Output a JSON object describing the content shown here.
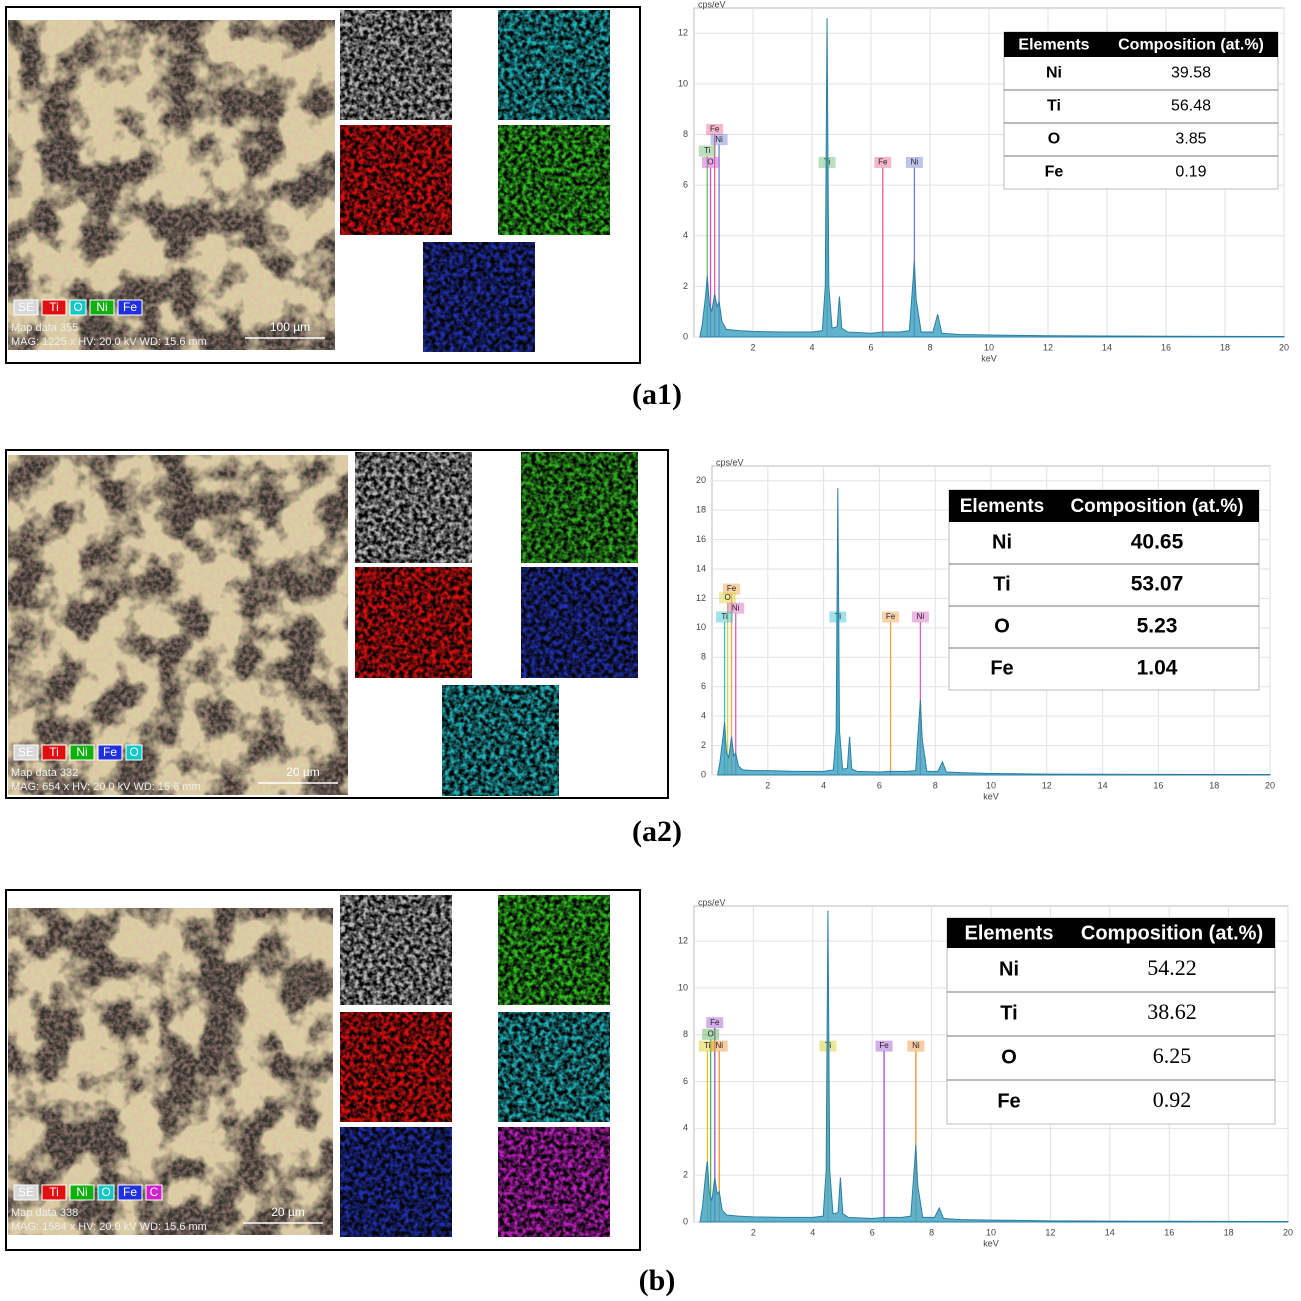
{
  "panels": [
    {
      "label": "(a1)",
      "image": {
        "elements": [
          {
            "name": "SE",
            "color": "#d8d8d8"
          },
          {
            "name": "Ti",
            "color": "#e01010"
          },
          {
            "name": "O",
            "color": "#10c8c8"
          },
          {
            "name": "Ni",
            "color": "#10b010"
          },
          {
            "name": "Fe",
            "color": "#2030e0"
          }
        ],
        "map_name": "Map data 355",
        "settings": "MAG: 1225 x  HV: 20.0 kV  WD: 15.6 mm",
        "scale": "100 µm"
      },
      "chart_data": {
        "type": "area",
        "y_label": "cps/eV",
        "x_label": "keV",
        "color": "#3a9fbf",
        "grid": true,
        "xlim": [
          0,
          20
        ],
        "ylim": [
          0,
          13
        ],
        "xticks": [
          2,
          4,
          6,
          8,
          10,
          12,
          14,
          16,
          18,
          20
        ],
        "yticks": [
          0,
          2,
          4,
          6,
          8,
          10,
          12
        ],
        "x": [
          0.2,
          0.28,
          0.39,
          0.45,
          0.52,
          0.6,
          0.7,
          0.78,
          0.85,
          0.95,
          1.1,
          1.5,
          2,
          3,
          4,
          4.35,
          4.45,
          4.51,
          4.57,
          4.68,
          4.85,
          4.93,
          5.01,
          5.2,
          6,
          6.4,
          7,
          7.3,
          7.41,
          7.47,
          7.53,
          7.7,
          8.1,
          8.26,
          8.4,
          9,
          10,
          12,
          14,
          16,
          20
        ],
        "values": [
          0,
          0.5,
          1.6,
          2.4,
          1.3,
          1.0,
          1.7,
          1.2,
          1.4,
          0.6,
          0.3,
          0.25,
          0.22,
          0.2,
          0.2,
          0.25,
          2.0,
          12.6,
          2.0,
          0.35,
          0.4,
          1.6,
          0.35,
          0.2,
          0.15,
          0.2,
          0.2,
          0.25,
          2.0,
          3.0,
          1.5,
          0.2,
          0.2,
          0.9,
          0.15,
          0.1,
          0.08,
          0.05,
          0.04,
          0.03,
          0.02
        ],
        "peaks": [
          {
            "label": "Fe",
            "x": 0.7,
            "height": 8,
            "color": "#ec5f8f"
          },
          {
            "label": "Ni",
            "x": 0.85,
            "height": 7.6,
            "color": "#6f7fd0"
          },
          {
            "label": "Ti",
            "x": 0.45,
            "height": 7.15,
            "color": "#66bb6a"
          },
          {
            "label": "O",
            "x": 0.56,
            "height": 6.7,
            "color": "#d04ad0"
          },
          {
            "label": "Ti",
            "x": 4.51,
            "height": 6.7,
            "color": "#66bb6a"
          },
          {
            "label": "Fe",
            "x": 6.4,
            "height": 6.7,
            "color": "#ec5f8f"
          },
          {
            "label": "Ni",
            "x": 7.47,
            "height": 6.7,
            "color": "#6f7fd0"
          }
        ]
      },
      "table": {
        "header": [
          "Elements",
          "Composition (at.%)"
        ],
        "rows": [
          [
            "Ni",
            "39.58"
          ],
          [
            "Ti",
            "56.48"
          ],
          [
            "O",
            "3.85"
          ],
          [
            "Fe",
            "0.19"
          ]
        ]
      }
    },
    {
      "label": "(a2)",
      "image": {
        "elements": [
          {
            "name": "SE",
            "color": "#d8d8d8"
          },
          {
            "name": "Ti",
            "color": "#e01010"
          },
          {
            "name": "Ni",
            "color": "#10b010"
          },
          {
            "name": "Fe",
            "color": "#2030e0"
          },
          {
            "name": "O",
            "color": "#10c8c8"
          }
        ],
        "map_name": "Map data 332",
        "settings": "MAG: 654 x  HV: 20.0 kV  WD: 15.6 mm",
        "scale": "20 µm"
      },
      "chart_data": {
        "type": "area",
        "y_label": "cps/eV",
        "x_label": "keV",
        "color": "#3a9fbf",
        "grid": true,
        "xlim": [
          0,
          20
        ],
        "ylim": [
          0,
          21
        ],
        "xticks": [
          2,
          4,
          6,
          8,
          10,
          12,
          14,
          16,
          18,
          20
        ],
        "yticks": [
          0,
          2,
          4,
          6,
          8,
          10,
          12,
          14,
          16,
          18,
          20
        ],
        "x": [
          0.2,
          0.28,
          0.39,
          0.45,
          0.52,
          0.6,
          0.7,
          0.78,
          0.85,
          0.95,
          1.1,
          1.5,
          2,
          3,
          4,
          4.35,
          4.45,
          4.51,
          4.57,
          4.68,
          4.85,
          4.93,
          5.01,
          5.2,
          6,
          6.4,
          7,
          7.3,
          7.41,
          7.47,
          7.53,
          7.7,
          8.1,
          8.26,
          8.4,
          9,
          10,
          12,
          14,
          16,
          20
        ],
        "values": [
          0,
          0.8,
          2.5,
          3.6,
          1.5,
          1.2,
          2.6,
          1.3,
          1.5,
          0.6,
          0.35,
          0.3,
          0.3,
          0.25,
          0.25,
          0.35,
          3.0,
          19.5,
          3.0,
          0.4,
          0.45,
          2.6,
          0.4,
          0.25,
          0.2,
          0.25,
          0.25,
          0.3,
          3.5,
          5.1,
          2.5,
          0.25,
          0.25,
          0.9,
          0.2,
          0.15,
          0.1,
          0.06,
          0.05,
          0.04,
          0.03
        ],
        "peaks": [
          {
            "label": "Fe",
            "x": 0.7,
            "height": 12.3,
            "color": "#f0a040"
          },
          {
            "label": "O",
            "x": 0.56,
            "height": 11.7,
            "color": "#e0d030"
          },
          {
            "label": "Ni",
            "x": 0.85,
            "height": 11.0,
            "color": "#d860c0"
          },
          {
            "label": "Ti",
            "x": 0.45,
            "height": 10.4,
            "color": "#30c0d0"
          },
          {
            "label": "Ti",
            "x": 4.51,
            "height": 10.4,
            "color": "#30c0d0"
          },
          {
            "label": "Fe",
            "x": 6.4,
            "height": 10.4,
            "color": "#f0a040"
          },
          {
            "label": "Ni",
            "x": 7.47,
            "height": 10.4,
            "color": "#d860c0"
          }
        ]
      },
      "table": {
        "header": [
          "Elements",
          "Composition (at.%)"
        ],
        "rows": [
          [
            "Ni",
            "40.65"
          ],
          [
            "Ti",
            "53.07"
          ],
          [
            "O",
            "5.23"
          ],
          [
            "Fe",
            "1.04"
          ]
        ]
      }
    },
    {
      "label": "(b)",
      "image": {
        "elements": [
          {
            "name": "SE",
            "color": "#d8d8d8"
          },
          {
            "name": "Ti",
            "color": "#e01010"
          },
          {
            "name": "Ni",
            "color": "#10b010"
          },
          {
            "name": "O",
            "color": "#10c8c8"
          },
          {
            "name": "Fe",
            "color": "#2030e0"
          },
          {
            "name": "C",
            "color": "#d020d0"
          }
        ],
        "map_name": "Map data 338",
        "settings": "MAG: 1584 x  HV: 20.0 kV  WD: 15.6 mm",
        "scale": "20 µm"
      },
      "chart_data": {
        "type": "area",
        "y_label": "cps/eV",
        "x_label": "keV",
        "color": "#3a9fbf",
        "grid": true,
        "xlim": [
          0,
          20
        ],
        "ylim": [
          0,
          13.5
        ],
        "xticks": [
          2,
          4,
          6,
          8,
          10,
          12,
          14,
          16,
          18,
          20
        ],
        "yticks": [
          0,
          2,
          4,
          6,
          8,
          10,
          12
        ],
        "x": [
          0.2,
          0.28,
          0.39,
          0.45,
          0.52,
          0.6,
          0.7,
          0.78,
          0.85,
          0.95,
          1.1,
          1.5,
          2,
          3,
          4,
          4.35,
          4.45,
          4.51,
          4.57,
          4.68,
          4.85,
          4.93,
          5.01,
          5.2,
          6,
          6.4,
          7,
          7.3,
          7.41,
          7.47,
          7.53,
          7.7,
          8.1,
          8.26,
          8.4,
          9,
          10,
          12,
          14,
          16,
          20
        ],
        "values": [
          0,
          0.6,
          2.0,
          2.6,
          1.2,
          0.9,
          1.9,
          1.2,
          1.3,
          0.5,
          0.3,
          0.25,
          0.22,
          0.2,
          0.2,
          0.25,
          2.2,
          13.3,
          2.2,
          0.35,
          0.4,
          1.9,
          0.35,
          0.2,
          0.15,
          0.2,
          0.2,
          0.25,
          2.2,
          3.3,
          1.6,
          0.2,
          0.2,
          0.6,
          0.15,
          0.1,
          0.08,
          0.05,
          0.04,
          0.03,
          0.02
        ],
        "peaks": [
          {
            "label": "Fe",
            "x": 0.7,
            "height": 8.3,
            "color": "#a050d0"
          },
          {
            "label": "O",
            "x": 0.56,
            "height": 7.8,
            "color": "#50b050"
          },
          {
            "label": "Ti",
            "x": 0.45,
            "height": 7.3,
            "color": "#d8c820"
          },
          {
            "label": "Ni",
            "x": 0.85,
            "height": 7.3,
            "color": "#f09030"
          },
          {
            "label": "Ti",
            "x": 4.51,
            "height": 7.3,
            "color": "#d8c820"
          },
          {
            "label": "Fe",
            "x": 6.4,
            "height": 7.3,
            "color": "#a050d0"
          },
          {
            "label": "Ni",
            "x": 7.47,
            "height": 7.3,
            "color": "#f09030"
          }
        ]
      },
      "table": {
        "header": [
          "Elements",
          "Composition (at.%)"
        ],
        "rows": [
          [
            "Ni",
            "54.22"
          ],
          [
            "Ti",
            "38.62"
          ],
          [
            "O",
            "6.25"
          ],
          [
            "Fe",
            "0.92"
          ]
        ]
      }
    }
  ]
}
